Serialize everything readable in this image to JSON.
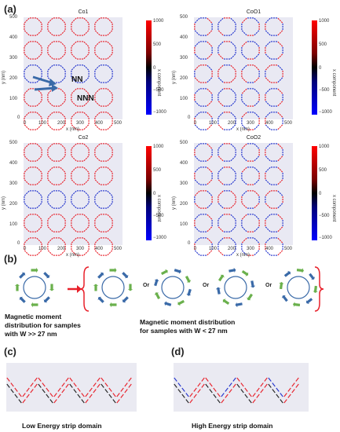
{
  "panel_labels": {
    "a": "(a)",
    "b": "(b)",
    "c": "(c)",
    "d": "(d)"
  },
  "plots": [
    {
      "title": "Co1",
      "annot": [
        "NN",
        "NNN"
      ]
    },
    {
      "title": "CoO1",
      "annot": []
    },
    {
      "title": "Co2",
      "annot": []
    },
    {
      "title": "CoO2",
      "annot": []
    }
  ],
  "axes": {
    "xlabel": "x (nm)",
    "ylabel": "y (nm)",
    "xticks": [
      "0",
      "100",
      "200",
      "300",
      "400",
      "500"
    ],
    "yticks": [
      "500",
      "400",
      "300",
      "200",
      "100",
      "0"
    ],
    "cbar_label": "x component",
    "cbar_ticks": [
      "1000",
      "500",
      "0",
      "−500",
      "−1000"
    ]
  },
  "colors": {
    "positive": "#e8202a",
    "negative": "#2233cc",
    "plot_bg": "#e9e9f3",
    "arrow_blue": "#3a6aa8",
    "arrow_green": "#6ab04c",
    "brace_red": "#e8202a"
  },
  "panel_b": {
    "or_label": "Or",
    "caption_left": [
      "Magnetic moment",
      "distribution for samples",
      "with W >> 27 nm"
    ],
    "caption_right": [
      "Magnetic moment distribution",
      "for samples with W < 27 nm"
    ]
  },
  "panel_c": {
    "caption": "Low Energy strip domain"
  },
  "panel_d": {
    "caption": "High Energy strip domain"
  }
}
